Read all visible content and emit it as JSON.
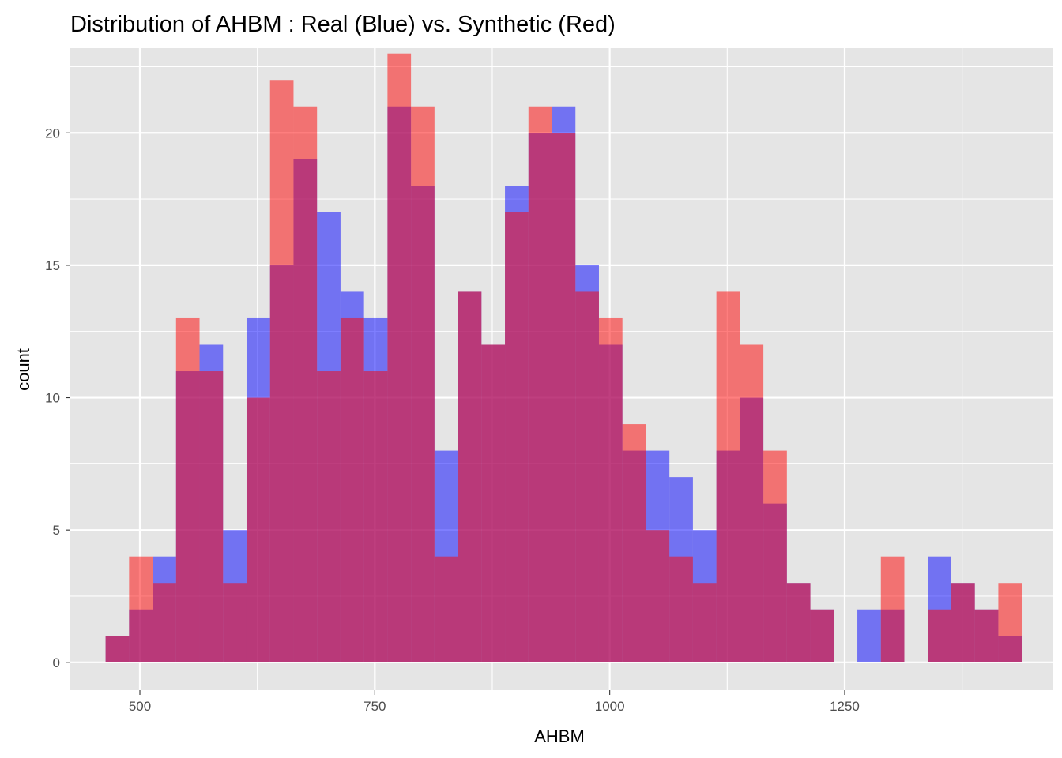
{
  "chart_data": {
    "type": "bar",
    "title": "Distribution of AHBM : Real (Blue) vs. Synthetic (Red)",
    "xlabel": "AHBM",
    "ylabel": "count",
    "xlim": [
      426,
      1472
    ],
    "ylim": [
      -1.05,
      23.2
    ],
    "x_ticks": [
      500,
      750,
      1000,
      1250
    ],
    "y_ticks": [
      0,
      5,
      10,
      15,
      20
    ],
    "grid": true,
    "colors": {
      "real": "#0000ff",
      "synthetic": "#ff0000",
      "panel": "#e5e5e5",
      "grid": "#ffffff"
    },
    "bin_centers": [
      476,
      501,
      526,
      551,
      576,
      601,
      626,
      651,
      676,
      701,
      726,
      751,
      776,
      801,
      826,
      851,
      876,
      901,
      926,
      951,
      976,
      1001,
      1026,
      1051,
      1076,
      1101,
      1126,
      1151,
      1176,
      1201,
      1226,
      1251,
      1276,
      1301,
      1326,
      1351,
      1376,
      1401,
      1426
    ],
    "bin_width": 25,
    "series": [
      {
        "name": "Real",
        "values": [
          1,
          2,
          4,
          11,
          12,
          5,
          13,
          15,
          19,
          17,
          14,
          13,
          21,
          18,
          8,
          14,
          12,
          18,
          20,
          21,
          15,
          12,
          8,
          8,
          7,
          5,
          8,
          10,
          6,
          3,
          2,
          0,
          2,
          2,
          0,
          4,
          3,
          2,
          1
        ]
      },
      {
        "name": "Synthetic",
        "values": [
          1,
          4,
          3,
          13,
          11,
          3,
          10,
          22,
          21,
          11,
          13,
          11,
          23,
          21,
          4,
          14,
          12,
          17,
          21,
          20,
          14,
          13,
          9,
          5,
          4,
          3,
          14,
          12,
          8,
          3,
          2,
          0,
          0,
          4,
          0,
          2,
          3,
          2,
          3
        ]
      }
    ]
  }
}
